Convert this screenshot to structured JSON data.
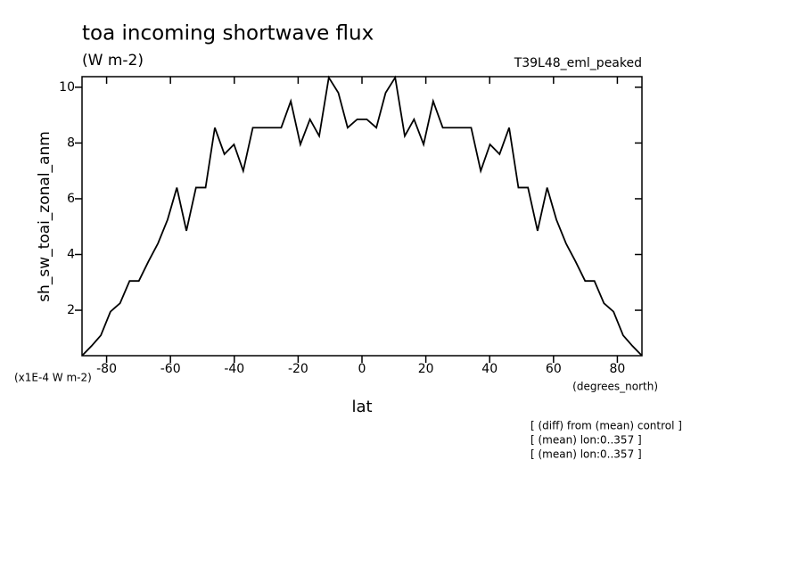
{
  "chart_data": {
    "type": "line",
    "title": "toa incoming shortwave flux",
    "subtitle": "(W m-2)",
    "run_label": "T39L48_eml_peaked",
    "y_label": "sh_sw_toai_zonal_anm",
    "y_units": "(x1E-4 W m-2)",
    "x_label": "lat",
    "x_units": "(degrees_north)",
    "annotations": [
      "[ (diff) from (mean) control ]",
      "[ (mean) lon:0..357 ]",
      "[ (mean) lon:0..357 ]"
    ],
    "x": [
      -87.7,
      -84.7,
      -81.8,
      -78.8,
      -75.8,
      -72.8,
      -69.9,
      -66.9,
      -63.9,
      -60.9,
      -58.0,
      -55.0,
      -52.0,
      -49.0,
      -46.1,
      -43.1,
      -40.1,
      -37.2,
      -34.2,
      -31.2,
      -28.2,
      -25.3,
      -22.3,
      -19.3,
      -16.3,
      -13.4,
      -10.4,
      -7.4,
      -4.5,
      -1.5,
      1.5,
      4.5,
      7.4,
      10.4,
      13.4,
      16.3,
      19.3,
      22.3,
      25.3,
      28.2,
      31.2,
      34.2,
      37.2,
      40.1,
      43.1,
      46.1,
      49.0,
      52.0,
      55.0,
      58.0,
      60.9,
      63.9,
      66.9,
      69.9,
      72.8,
      75.8,
      78.8,
      81.8,
      84.7,
      87.7
    ],
    "series": [
      {
        "name": "sh_sw_toai_zonal_anm",
        "color": "#000000",
        "values": [
          0.37,
          0.72,
          1.1,
          1.95,
          2.25,
          3.05,
          3.05,
          3.75,
          4.4,
          5.25,
          6.4,
          4.85,
          6.4,
          6.4,
          8.55,
          7.6,
          7.95,
          7.0,
          8.55,
          8.55,
          8.55,
          8.55,
          9.5,
          7.95,
          8.85,
          8.25,
          10.35,
          9.8,
          8.55,
          8.85,
          8.85,
          8.55,
          9.8,
          10.35,
          8.25,
          8.85,
          7.95,
          9.5,
          8.55,
          8.55,
          8.55,
          8.55,
          7.0,
          7.95,
          7.6,
          8.55,
          6.4,
          6.4,
          4.85,
          6.4,
          5.25,
          4.4,
          3.75,
          3.05,
          3.05,
          2.25,
          1.95,
          1.1,
          0.72,
          0.37
        ]
      }
    ],
    "xlim": [
      -87.7,
      87.7
    ],
    "ylim": [
      0.37,
      10.38
    ],
    "xticks": [
      -80,
      -60,
      -40,
      -20,
      0,
      20,
      40,
      60,
      80
    ],
    "yticks": [
      2,
      4,
      6,
      8,
      10
    ],
    "grid": false
  }
}
